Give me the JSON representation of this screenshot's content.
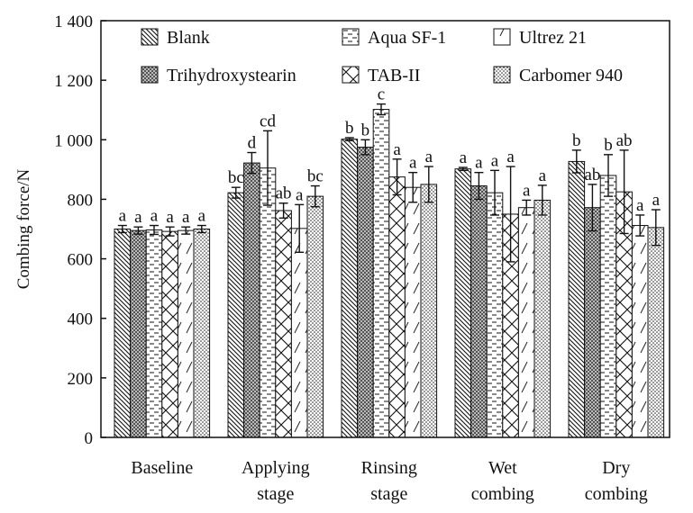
{
  "chart_data": {
    "type": "bar",
    "ylabel": "Combing force/N",
    "xlabel": "",
    "ylim": [
      0,
      1400
    ],
    "yticks": [
      0,
      200,
      400,
      600,
      800,
      1000,
      1200,
      1400
    ],
    "ytick_labels": [
      "0",
      "200",
      "400",
      "600",
      "800",
      "1 000",
      "1 200",
      "1 400"
    ],
    "categories": [
      "Baseline",
      "Applying stage",
      "Rinsing stage",
      "Wet combing",
      "Dry combing"
    ],
    "category_lines": [
      [
        "Baseline"
      ],
      [
        "Applying",
        "stage"
      ],
      [
        "Rinsing",
        "stage"
      ],
      [
        "Wet",
        "combing"
      ],
      [
        "Dry",
        "combing"
      ]
    ],
    "legend_position": "top, inside plot area (3 columns x 2 rows)",
    "grid": false,
    "series": [
      {
        "name": "Blank",
        "pattern": "back-diagonal-hatch",
        "values": [
          700,
          822,
          1002,
          902,
          927
        ],
        "errors": [
          12,
          18,
          5,
          5,
          38
        ],
        "labels": [
          "a",
          "bc",
          "b",
          "a",
          "b"
        ]
      },
      {
        "name": "Trihydroxystearin",
        "pattern": "dark-checker",
        "values": [
          695,
          922,
          975,
          845,
          772
        ],
        "errors": [
          12,
          35,
          25,
          45,
          78
        ],
        "labels": [
          "a",
          "d",
          "b",
          "a",
          "ab"
        ]
      },
      {
        "name": "Aqua SF-1",
        "pattern": "horizontal-dashes",
        "values": [
          697,
          905,
          1102,
          822,
          880
        ],
        "errors": [
          15,
          125,
          18,
          75,
          70
        ],
        "labels": [
          "a",
          "cd",
          "c",
          "a",
          "b"
        ]
      },
      {
        "name": "TAB-II",
        "pattern": "diamond-crosshatch",
        "values": [
          692,
          762,
          875,
          750,
          825
        ],
        "errors": [
          15,
          25,
          60,
          160,
          140
        ],
        "labels": [
          "a",
          "ab",
          "a",
          "a",
          "ab"
        ]
      },
      {
        "name": "Ultrez 21",
        "pattern": "sparse-diagonal-dash",
        "values": [
          695,
          702,
          840,
          772,
          712
        ],
        "errors": [
          12,
          80,
          50,
          25,
          35
        ],
        "labels": [
          "a",
          "a",
          "a",
          "a",
          "a"
        ]
      },
      {
        "name": "Carbomer 940",
        "pattern": "dots",
        "values": [
          700,
          810,
          850,
          797,
          705
        ],
        "errors": [
          12,
          35,
          60,
          50,
          60
        ],
        "labels": [
          "a",
          "bc",
          "a",
          "a",
          "a"
        ]
      }
    ]
  }
}
